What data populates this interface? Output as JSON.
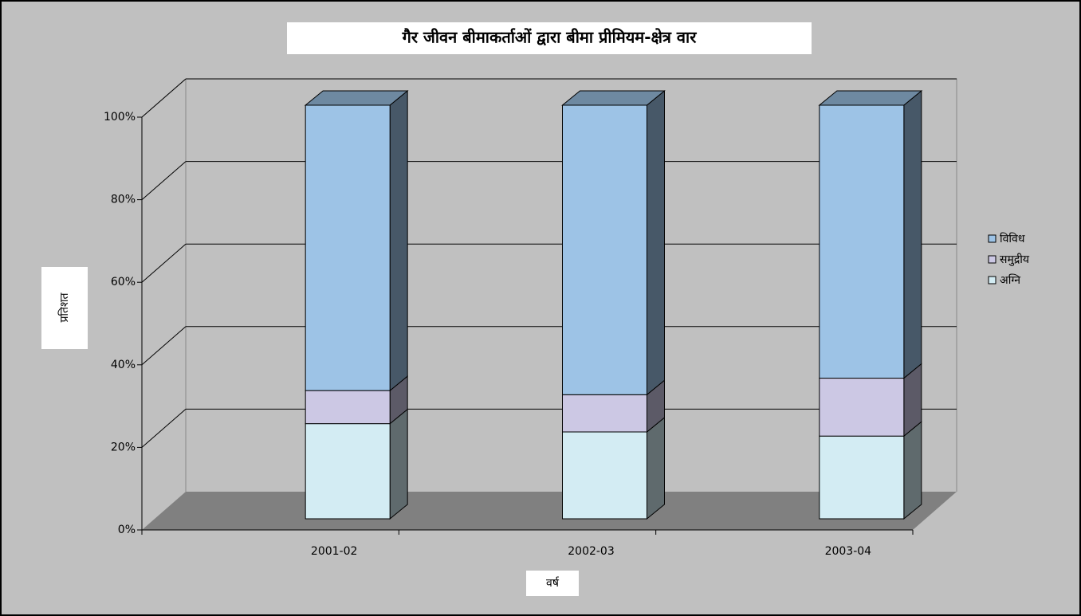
{
  "chart_data": {
    "type": "bar",
    "stacked": true,
    "title": "गैर जीवन बीमाकर्ताओं द्वारा बीमा प्रीमियम-क्षेत्र वार",
    "x_label": "वर्ष",
    "y_label": "प्रतिशत",
    "categories": [
      "2001-02",
      "2002-03",
      "2003-04"
    ],
    "series": [
      {
        "name": "अग्नि",
        "color": "#d3ecf3",
        "values": [
          23,
          21,
          20
        ]
      },
      {
        "name": "समुद्रीय",
        "color": "#ccc8e4",
        "values": [
          8,
          9,
          14
        ]
      },
      {
        "name": "विविध",
        "color": "#9dc3e6",
        "values": [
          69,
          70,
          66
        ]
      }
    ],
    "ylim": [
      0,
      100
    ],
    "yticks": [
      {
        "value": 0,
        "label": "0%"
      },
      {
        "value": 20,
        "label": "20%"
      },
      {
        "value": 40,
        "label": "40%"
      },
      {
        "value": 60,
        "label": "60%"
      },
      {
        "value": 80,
        "label": "80%"
      },
      {
        "value": 100,
        "label": "100%"
      }
    ],
    "grid": true,
    "legend": "right"
  }
}
